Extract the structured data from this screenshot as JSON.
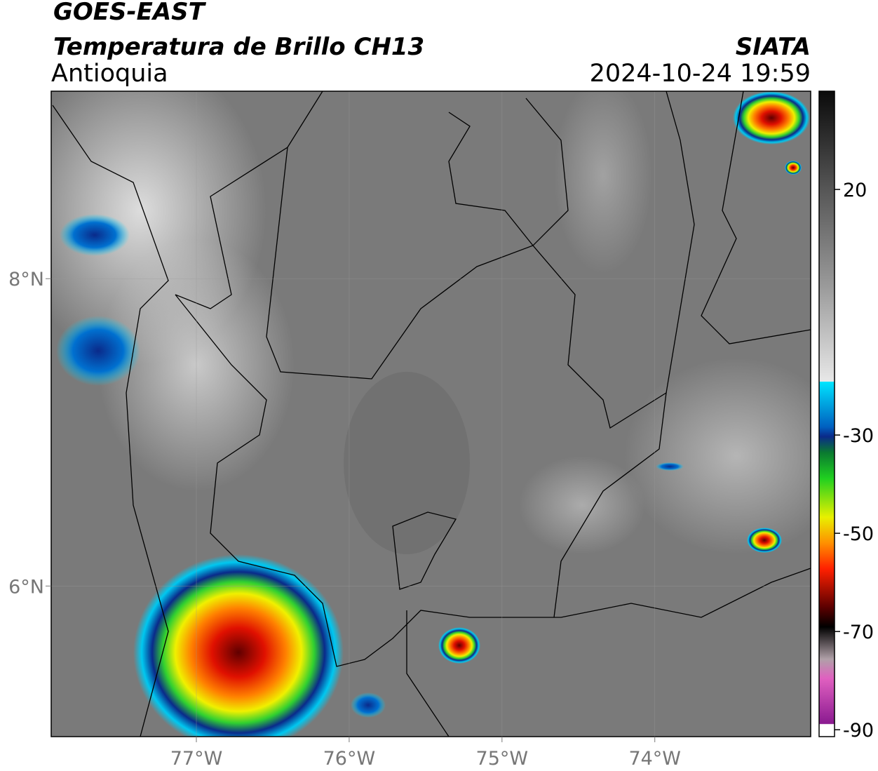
{
  "header": {
    "satellite": "GOES-EAST",
    "product": "Temperatura de Brillo CH13",
    "region": "Antioquia",
    "source": "SIATA",
    "datetime": "2024-10-24 19:59"
  },
  "map": {
    "xlim": [
      -77.95,
      -72.98
    ],
    "ylim": [
      5.02,
      9.22
    ],
    "xticks": [
      {
        "value": -77,
        "label": "77°W"
      },
      {
        "value": -76,
        "label": "76°W"
      },
      {
        "value": -75,
        "label": "75°W"
      },
      {
        "value": -74,
        "label": "74°W"
      }
    ],
    "yticks": [
      {
        "value": 8,
        "label": "8°N"
      },
      {
        "value": 6,
        "label": "6°N"
      }
    ],
    "grid": true
  },
  "colorbar": {
    "range": [
      -91.4,
      40
    ],
    "ticks": [
      20,
      -30,
      -50,
      -70,
      -90
    ]
  }
}
